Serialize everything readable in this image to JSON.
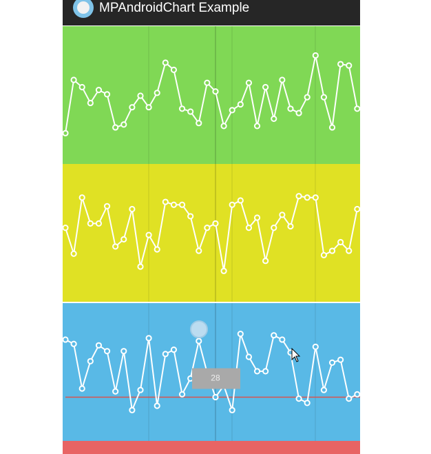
{
  "header": {
    "title": "MPAndroidChart Example"
  },
  "chart_data": [
    {
      "type": "line",
      "background": "#80d855",
      "color": "#ffffff",
      "ylim": [
        0,
        90
      ],
      "highlight": 18,
      "values": [
        19,
        56,
        51,
        40,
        49,
        46,
        23,
        25,
        37,
        45,
        37,
        47,
        68,
        63,
        36,
        34,
        26,
        54,
        48,
        24,
        35,
        39,
        54,
        24,
        51,
        29,
        56,
        36,
        33,
        44,
        73,
        44,
        23,
        67,
        66,
        36
      ]
    },
    {
      "type": "line",
      "background": "#e0e124",
      "color": "#ffffff",
      "ylim": [
        0,
        90
      ],
      "highlight": 18,
      "values": [
        49,
        31,
        70,
        52,
        52,
        64,
        36,
        41,
        62,
        22,
        44,
        34,
        67,
        65,
        65,
        57,
        33,
        49,
        52,
        19,
        65,
        68,
        49,
        56,
        26,
        49,
        58,
        50,
        71,
        70,
        70,
        30,
        33,
        39,
        33,
        62
      ]
    },
    {
      "type": "line",
      "background": "#59b9e6",
      "color": "#ffffff",
      "ylim": [
        0,
        90
      ],
      "highlight": 18,
      "limit_line": 28,
      "limit_color": "#d9534f",
      "values": [
        68,
        65,
        34,
        53,
        64,
        60,
        32,
        60,
        19,
        33,
        69,
        22,
        58,
        61,
        30,
        41,
        67,
        45,
        28,
        36,
        19,
        72,
        56,
        46,
        46,
        71,
        68,
        59,
        27,
        24,
        63,
        33,
        52,
        54,
        27,
        30
      ]
    }
  ]
}
